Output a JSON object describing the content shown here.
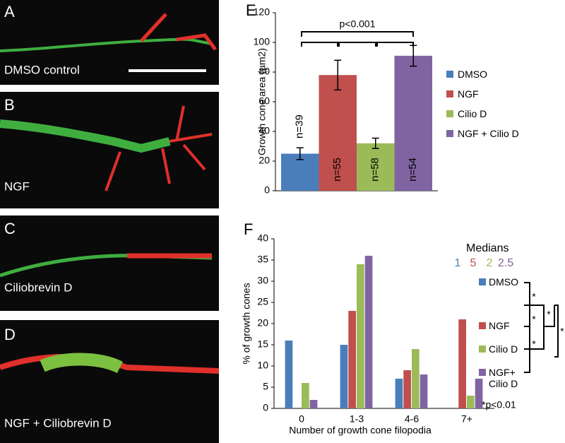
{
  "panels": [
    {
      "letter": "A",
      "caption": "DMSO control"
    },
    {
      "letter": "B",
      "caption": "NGF"
    },
    {
      "letter": "C",
      "caption": "Ciliobrevin D"
    },
    {
      "letter": "D",
      "caption": "NGF + Ciliobrevin D"
    }
  ],
  "chart_data": [
    {
      "type": "bar",
      "panel": "E",
      "y_label": "Growth cone area (µm2)",
      "annotation": "p<0.001",
      "categories": [
        "DMSO",
        "NGF",
        "Cilio D",
        "NGF + Cilio D"
      ],
      "values": [
        25,
        78,
        32,
        91
      ],
      "errors": [
        4,
        10,
        3.5,
        7
      ],
      "bar_labels": [
        "n=39",
        "n=55",
        "n=58",
        "n=54"
      ],
      "colors": [
        "#4a7ebb",
        "#c0504d",
        "#9bbb59",
        "#8064a2"
      ],
      "ylim": [
        0,
        120
      ],
      "yticks": [
        0,
        20,
        40,
        60,
        80,
        100,
        120
      ],
      "legend": "right"
    },
    {
      "type": "grouped_bar",
      "panel": "F",
      "y_label": "% of growth cones",
      "x_label": "Number of growth cone filopodia",
      "categories": [
        "0",
        "1-3",
        "4-6",
        "7+"
      ],
      "series": [
        {
          "name": "DMSO",
          "color": "#4a7ebb",
          "values": [
            16,
            15,
            7,
            0
          ]
        },
        {
          "name": "NGF",
          "color": "#c0504d",
          "values": [
            0,
            23,
            9,
            21
          ]
        },
        {
          "name": "Cilio D",
          "color": "#9bbb59",
          "values": [
            6,
            34,
            14,
            3
          ]
        },
        {
          "name": "NGF+ Cilio D",
          "color": "#8064a2",
          "values": [
            2,
            36,
            8,
            7
          ]
        }
      ],
      "medians": {
        "title": "Medians",
        "values": [
          1,
          5,
          2,
          2.5
        ]
      },
      "significance": {
        "marks": [
          "*",
          "*",
          "*",
          "*",
          "*"
        ],
        "note": "*p<0.01"
      },
      "ylim": [
        0,
        40
      ],
      "yticks": [
        0,
        5,
        10,
        15,
        20,
        25,
        30,
        35,
        40
      ],
      "legend": "right"
    }
  ]
}
